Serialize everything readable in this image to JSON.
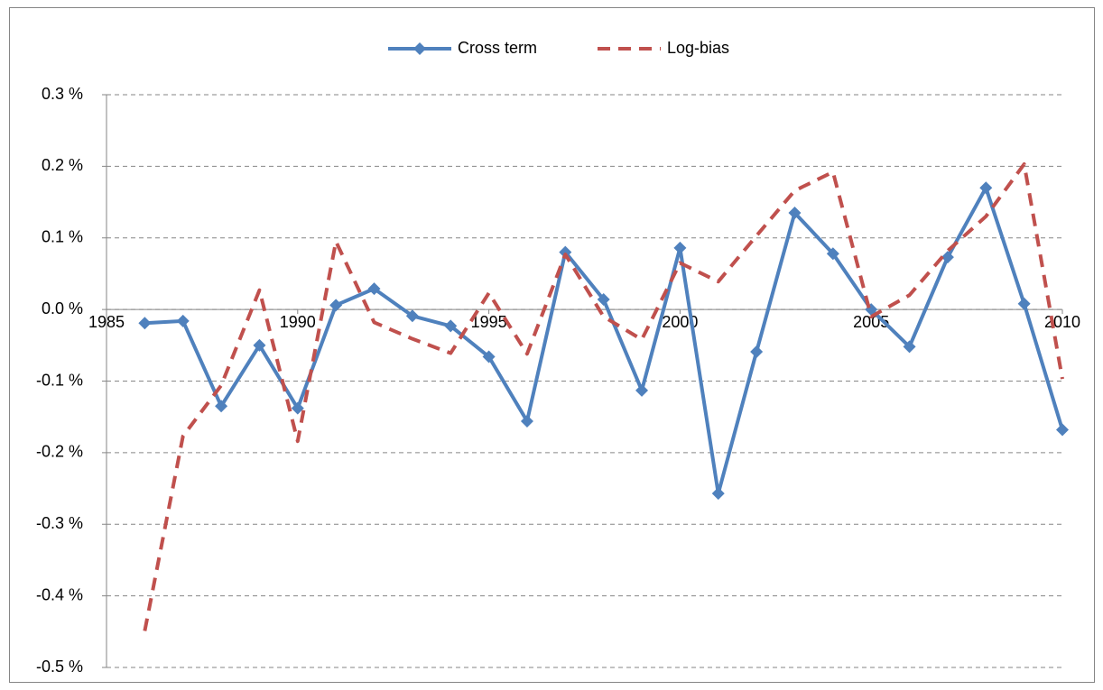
{
  "chart_data": {
    "type": "line",
    "x": [
      1986,
      1987,
      1988,
      1989,
      1990,
      1991,
      1992,
      1993,
      1994,
      1995,
      1996,
      1997,
      1998,
      1999,
      2000,
      2001,
      2002,
      2003,
      2004,
      2005,
      2006,
      2007,
      2008,
      2009,
      2010
    ],
    "series": [
      {
        "name": "Cross term",
        "color": "#4f81bd",
        "marker": "diamond",
        "line_style": "solid",
        "values": [
          -0.019,
          -0.016,
          -0.135,
          -0.05,
          -0.138,
          0.006,
          0.029,
          -0.009,
          -0.023,
          -0.066,
          -0.156,
          0.08,
          0.014,
          -0.113,
          0.086,
          -0.257,
          -0.059,
          0.135,
          0.078,
          0.0,
          -0.052,
          0.073,
          0.17,
          0.008,
          -0.168
        ]
      },
      {
        "name": "Log-bias",
        "color": "#c0504d",
        "marker": "none",
        "line_style": "dashed",
        "values": [
          -0.449,
          -0.177,
          -0.106,
          0.027,
          -0.184,
          0.095,
          -0.018,
          -0.041,
          -0.061,
          0.023,
          -0.062,
          0.077,
          -0.01,
          -0.042,
          0.065,
          0.039,
          0.103,
          0.166,
          0.192,
          -0.01,
          0.02,
          0.082,
          0.13,
          0.203,
          -0.097
        ]
      }
    ],
    "xlim": [
      1985,
      2010
    ],
    "xticks": [
      1985,
      1990,
      1995,
      2000,
      2005,
      2010
    ],
    "ylim": [
      -0.5,
      0.3
    ],
    "yticks": [
      {
        "value": -0.5,
        "label": "-0.5 %"
      },
      {
        "value": -0.4,
        "label": "-0.4 %"
      },
      {
        "value": -0.3,
        "label": "-0.3 %"
      },
      {
        "value": -0.2,
        "label": "-0.2 %"
      },
      {
        "value": -0.1,
        "label": "-0.1 %"
      },
      {
        "value": 0.0,
        "label": "0.0 %"
      },
      {
        "value": 0.1,
        "label": "0.1 %"
      },
      {
        "value": 0.2,
        "label": "0.2 %"
      },
      {
        "value": 0.3,
        "label": "0.3 %"
      }
    ],
    "grid": true,
    "legend": "top"
  }
}
